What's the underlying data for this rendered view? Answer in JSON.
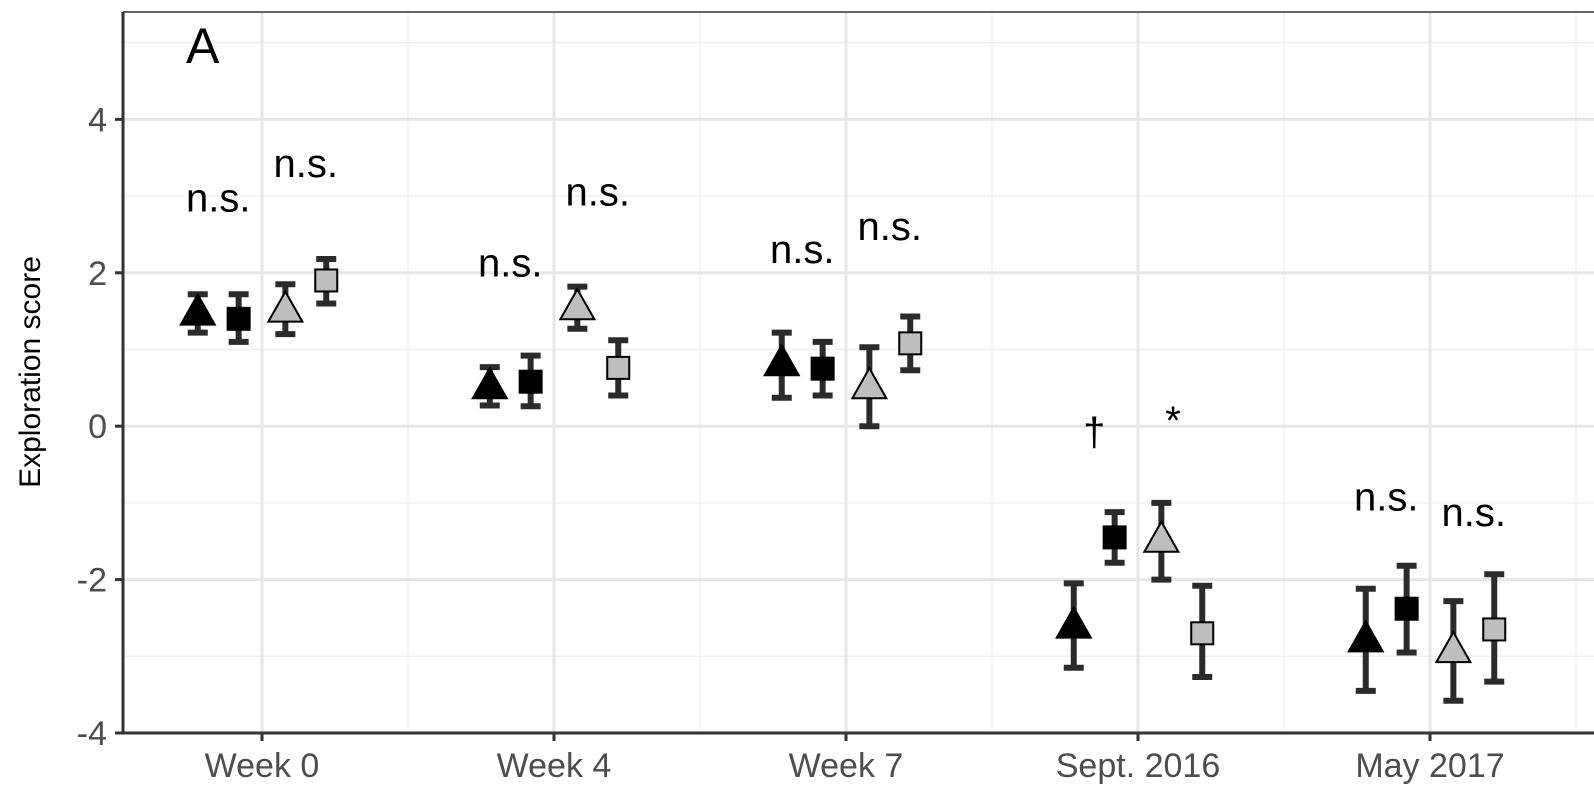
{
  "chart_data": {
    "type": "scatter",
    "panel_label": "A",
    "ylabel": "Exploration score",
    "xlabel": "",
    "categories": [
      "Week 0",
      "Week 4",
      "Week 7",
      "Sept. 2016",
      "May 2017"
    ],
    "ylim": [
      -4,
      5.4
    ],
    "yticks": [
      -4,
      -2,
      0,
      2,
      4
    ],
    "grid": true,
    "series": [
      {
        "marker": "triangle",
        "fill": "#000000",
        "offset": -0.22,
        "values": [
          1.48,
          0.52,
          0.82,
          -2.6,
          -2.78
        ],
        "lower": [
          1.22,
          0.27,
          0.37,
          -3.15,
          -3.45
        ],
        "upper": [
          1.72,
          0.77,
          1.22,
          -2.05,
          -2.12
        ]
      },
      {
        "marker": "square",
        "fill": "#000000",
        "offset": -0.08,
        "values": [
          1.4,
          0.58,
          0.75,
          -1.45,
          -2.38
        ],
        "lower": [
          1.1,
          0.26,
          0.4,
          -1.78,
          -2.95
        ],
        "upper": [
          1.72,
          0.92,
          1.1,
          -1.12,
          -1.82
        ]
      },
      {
        "marker": "triangle",
        "fill": "#bebebe",
        "offset": 0.08,
        "values": [
          1.52,
          1.55,
          0.52,
          -1.48,
          -2.92
        ],
        "lower": [
          1.2,
          1.27,
          0.0,
          -2.0,
          -3.58
        ],
        "upper": [
          1.85,
          1.82,
          1.03,
          -1.0,
          -2.28
        ]
      },
      {
        "marker": "square",
        "fill": "#bebebe",
        "offset": 0.22,
        "values": [
          1.9,
          0.76,
          1.08,
          -2.7,
          -2.65
        ],
        "lower": [
          1.6,
          0.4,
          0.73,
          -3.27,
          -3.33
        ],
        "upper": [
          2.18,
          1.12,
          1.43,
          -2.08,
          -1.93
        ]
      }
    ],
    "annotations": [
      {
        "text": "n.s.",
        "category": 0,
        "offset": -0.15,
        "y": 2.8
      },
      {
        "text": "n.s.",
        "category": 0,
        "offset": 0.15,
        "y": 3.25
      },
      {
        "text": "n.s.",
        "category": 1,
        "offset": -0.15,
        "y": 1.95
      },
      {
        "text": "n.s.",
        "category": 1,
        "offset": 0.15,
        "y": 2.88
      },
      {
        "text": "n.s.",
        "category": 2,
        "offset": -0.15,
        "y": 2.13
      },
      {
        "text": "n.s.",
        "category": 2,
        "offset": 0.15,
        "y": 2.43
      },
      {
        "text": "†",
        "category": 3,
        "offset": -0.15,
        "y": -0.25
      },
      {
        "text": "*",
        "category": 3,
        "offset": 0.12,
        "y": -0.1
      },
      {
        "text": "n.s.",
        "category": 4,
        "offset": -0.15,
        "y": -1.1
      },
      {
        "text": "n.s.",
        "category": 4,
        "offset": 0.15,
        "y": -1.3
      }
    ]
  }
}
